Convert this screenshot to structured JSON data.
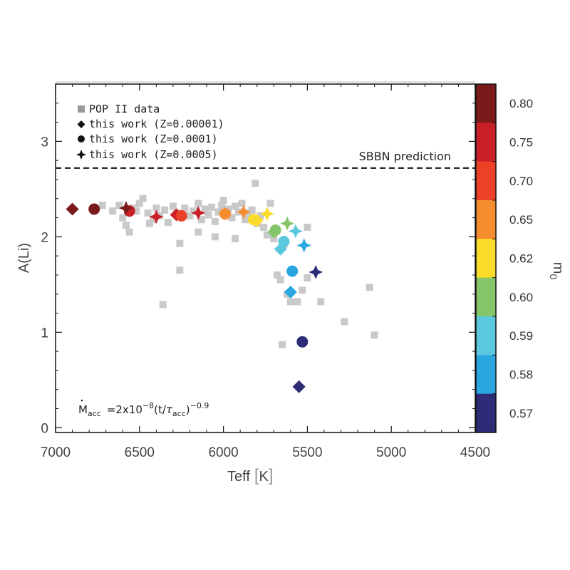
{
  "chart_data": {
    "type": "scatter",
    "xlabel": "Teff",
    "xlabel_unit": "K",
    "ylabel": "A(Li)",
    "xlim": [
      7000,
      4500
    ],
    "ylim": [
      -0.05,
      3.6
    ],
    "x_ticks": [
      7000,
      6500,
      6000,
      5500,
      5000,
      4500
    ],
    "y_ticks": [
      0,
      1,
      2,
      3
    ],
    "reference_line": {
      "y": 2.72,
      "label": "SBBN prediction"
    },
    "legend": [
      {
        "marker": "square",
        "label": "POP II data"
      },
      {
        "marker": "diamond",
        "label": "this work (Z=0.00001)"
      },
      {
        "marker": "circle",
        "label": "this work (Z=0.0001)"
      },
      {
        "marker": "star",
        "label": "this work (Z=0.0005)"
      }
    ],
    "annotation": {
      "prefix": "M",
      "prefix_sub": "acc",
      "mid": "=2x10",
      "exp1": "−8",
      "tail": "(t/",
      "tau": "τ",
      "tau_sub": "acc",
      "close": ")",
      "exp2": "−0.9"
    },
    "colorbar": {
      "label": "m",
      "label_sub": "0",
      "entries": [
        {
          "value": "0.80",
          "color": "#7a1a1a"
        },
        {
          "value": "0.75",
          "color": "#c92027"
        },
        {
          "value": "0.70",
          "color": "#ec4127"
        },
        {
          "value": "0.65",
          "color": "#f68e2f"
        },
        {
          "value": "0.62",
          "color": "#fcdc2a"
        },
        {
          "value": "0.60",
          "color": "#86c66b"
        },
        {
          "value": "0.59",
          "color": "#5ac8dd"
        },
        {
          "value": "0.58",
          "color": "#2aa6e0"
        },
        {
          "value": "0.57",
          "color": "#2d2b75"
        }
      ]
    },
    "pop2_data": [
      [
        6720,
        2.33
      ],
      [
        6660,
        2.27
      ],
      [
        6620,
        2.33
      ],
      [
        6600,
        2.2
      ],
      [
        6580,
        2.12
      ],
      [
        6560,
        2.05
      ],
      [
        6540,
        2.3
      ],
      [
        6520,
        2.27
      ],
      [
        6500,
        2.35
      ],
      [
        6480,
        2.4
      ],
      [
        6450,
        2.25
      ],
      [
        6420,
        2.18
      ],
      [
        6400,
        2.3
      ],
      [
        6380,
        2.22
      ],
      [
        6350,
        2.28
      ],
      [
        6330,
        2.15
      ],
      [
        6300,
        2.32
      ],
      [
        6280,
        2.25
      ],
      [
        6260,
        1.93
      ],
      [
        6250,
        2.2
      ],
      [
        6230,
        2.3
      ],
      [
        6200,
        2.22
      ],
      [
        6180,
        2.27
      ],
      [
        6150,
        2.35
      ],
      [
        6130,
        2.18
      ],
      [
        6110,
        2.29
      ],
      [
        6090,
        2.23
      ],
      [
        6070,
        2.31
      ],
      [
        6050,
        2.16
      ],
      [
        6030,
        2.26
      ],
      [
        6010,
        2.33
      ],
      [
        5990,
        2.24
      ],
      [
        5970,
        2.29
      ],
      [
        5950,
        2.2
      ],
      [
        5930,
        2.32
      ],
      [
        5910,
        2.26
      ],
      [
        5890,
        2.35
      ],
      [
        5870,
        2.18
      ],
      [
        5850,
        2.25
      ],
      [
        5830,
        2.28
      ],
      [
        5810,
        2.56
      ],
      [
        5800,
        2.14
      ],
      [
        5780,
        2.22
      ],
      [
        5760,
        2.1
      ],
      [
        5740,
        2.02
      ],
      [
        5720,
        2.35
      ],
      [
        5700,
        1.98
      ],
      [
        5680,
        1.6
      ],
      [
        5660,
        1.55
      ],
      [
        5640,
        1.92
      ],
      [
        5620,
        1.4
      ],
      [
        5600,
        1.32
      ],
      [
        5560,
        1.32
      ],
      [
        5530,
        1.44
      ],
      [
        5500,
        2.1
      ],
      [
        5420,
        1.32
      ],
      [
        5280,
        1.11
      ],
      [
        5130,
        1.47
      ],
      [
        5100,
        0.97
      ],
      [
        6360,
        1.29
      ],
      [
        6260,
        1.65
      ],
      [
        5500,
        1.57
      ],
      [
        5650,
        0.87
      ],
      [
        6050,
        2.0
      ],
      [
        6150,
        2.05
      ],
      [
        6440,
        2.14
      ],
      [
        6000,
        2.38
      ],
      [
        5930,
        1.98
      ]
    ],
    "model_Z00001": [
      {
        "teff": 6900,
        "ali": 2.29,
        "m0": "0.80"
      },
      {
        "teff": 6280,
        "ali": 2.23,
        "m0": "0.75"
      },
      {
        "teff": 5990,
        "ali": 2.24,
        "m0": "0.65"
      },
      {
        "teff": 5800,
        "ali": 2.17,
        "m0": "0.62"
      },
      {
        "teff": 5700,
        "ali": 2.05,
        "m0": "0.60"
      },
      {
        "teff": 5660,
        "ali": 1.87,
        "m0": "0.59"
      },
      {
        "teff": 5600,
        "ali": 1.42,
        "m0": "0.58"
      },
      {
        "teff": 5550,
        "ali": 0.43,
        "m0": "0.57"
      }
    ],
    "model_Z0001": [
      {
        "teff": 6770,
        "ali": 2.29,
        "m0": "0.80"
      },
      {
        "teff": 6560,
        "ali": 2.27,
        "m0": "0.75"
      },
      {
        "teff": 6250,
        "ali": 2.22,
        "m0": "0.70"
      },
      {
        "teff": 5990,
        "ali": 2.24,
        "m0": "0.65"
      },
      {
        "teff": 5820,
        "ali": 2.18,
        "m0": "0.62"
      },
      {
        "teff": 5690,
        "ali": 2.07,
        "m0": "0.60"
      },
      {
        "teff": 5640,
        "ali": 1.95,
        "m0": "0.59"
      },
      {
        "teff": 5590,
        "ali": 1.64,
        "m0": "0.58"
      },
      {
        "teff": 5530,
        "ali": 0.9,
        "m0": "0.57"
      }
    ],
    "model_Z0005": [
      {
        "teff": 6580,
        "ali": 2.3,
        "m0": "0.80"
      },
      {
        "teff": 6400,
        "ali": 2.21,
        "m0": "0.75"
      },
      {
        "teff": 6150,
        "ali": 2.25,
        "m0": "0.75"
      },
      {
        "teff": 5880,
        "ali": 2.26,
        "m0": "0.65"
      },
      {
        "teff": 5740,
        "ali": 2.24,
        "m0": "0.62"
      },
      {
        "teff": 5620,
        "ali": 2.14,
        "m0": "0.60"
      },
      {
        "teff": 5570,
        "ali": 2.06,
        "m0": "0.59"
      },
      {
        "teff": 5520,
        "ali": 1.91,
        "m0": "0.58"
      },
      {
        "teff": 5450,
        "ali": 1.63,
        "m0": "0.57"
      }
    ],
    "pop2_color": "#c9c9c9",
    "line_color": "#111111"
  }
}
